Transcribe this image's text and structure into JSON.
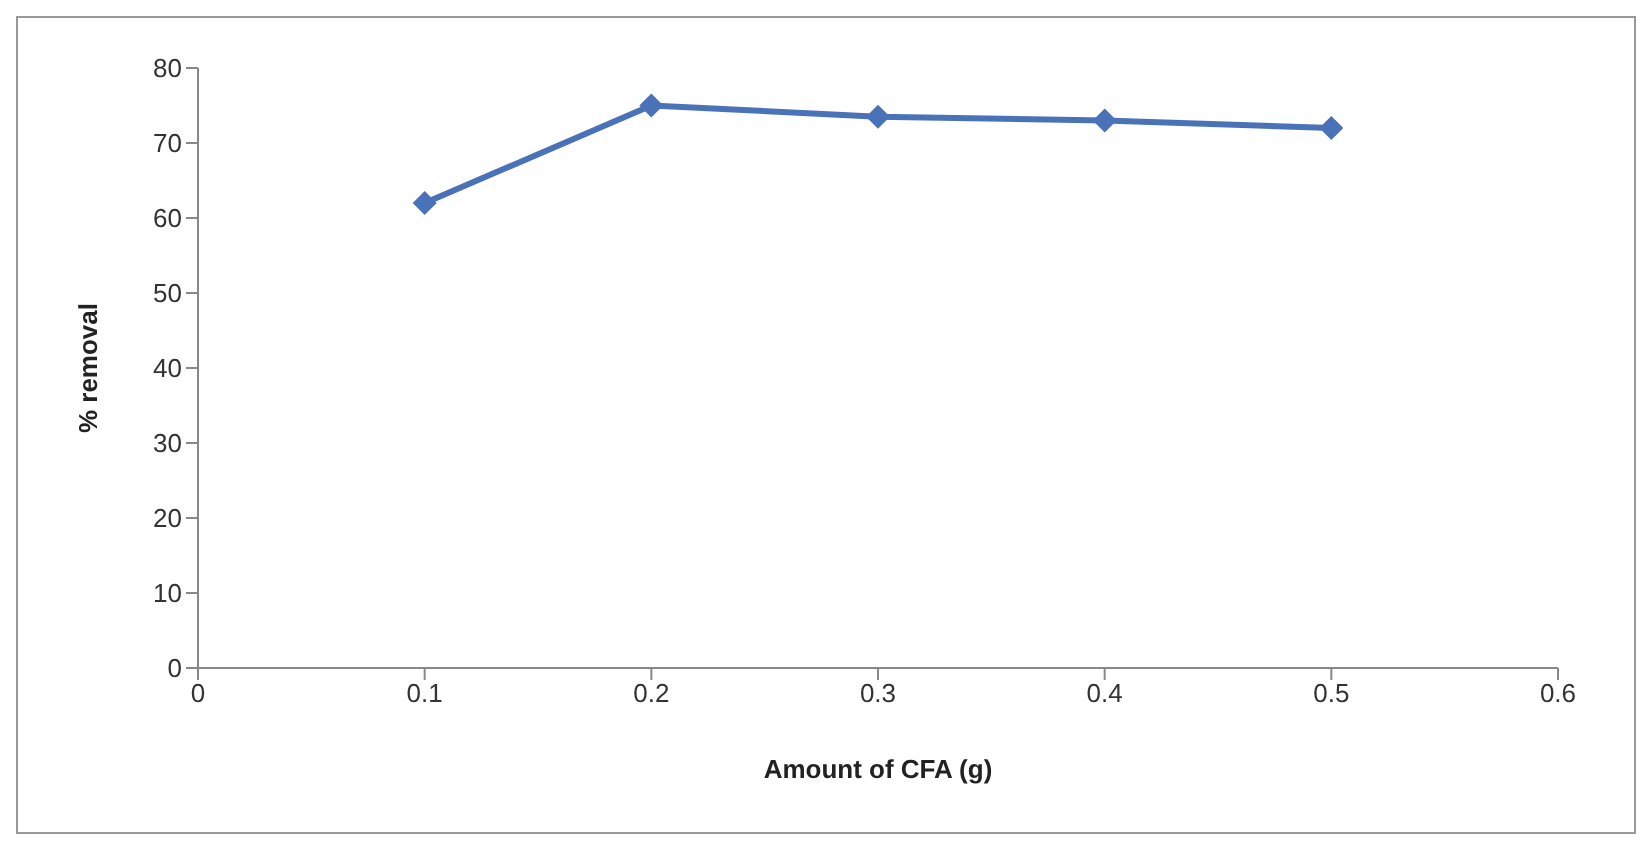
{
  "chart_data": {
    "type": "line",
    "xlabel": "Amount of CFA (g)",
    "ylabel": "% removal",
    "x": [
      0.1,
      0.2,
      0.3,
      0.4,
      0.5
    ],
    "series": [
      {
        "color": "#4a72b8",
        "values": [
          62,
          75,
          73.5,
          73,
          72
        ]
      }
    ],
    "xlim": [
      0,
      0.6
    ],
    "xticks": [
      0,
      0.1,
      0.2,
      0.3,
      0.4,
      0.5,
      0.6
    ],
    "ylim": [
      0,
      80
    ],
    "yticks": [
      0,
      10,
      20,
      30,
      40,
      50,
      60,
      70,
      80
    ],
    "grid": false,
    "legend": false,
    "marker": "diamond",
    "line_style": "solid"
  }
}
